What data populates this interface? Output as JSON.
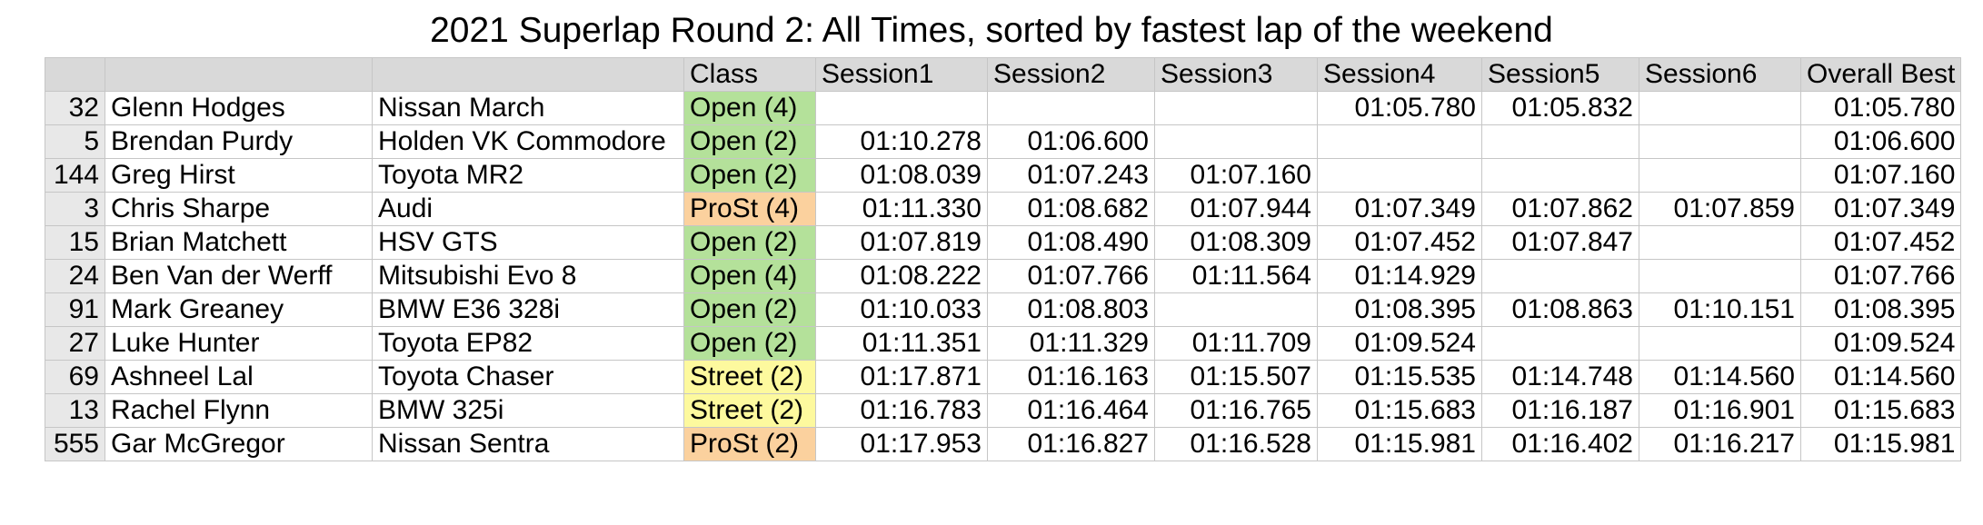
{
  "title": "2021 Superlap Round 2: All Times, sorted by fastest lap of the weekend",
  "table": {
    "header": [
      "Class",
      "Session1",
      "Session2",
      "Session3",
      "Session4",
      "Session5",
      "Session6",
      "Overall Best"
    ],
    "rows": [
      {
        "number": "32",
        "driver": "Glenn Hodges",
        "car": "Nissan March",
        "class": "Open (4)",
        "class_color": "#b4e19a",
        "sessions": [
          null,
          null,
          null,
          "01:05.780",
          "01:05.832",
          null
        ],
        "best": "01:05.780"
      },
      {
        "number": "5",
        "driver": "Brendan Purdy",
        "car": "Holden VK Commodore",
        "class": "Open (2)",
        "class_color": "#b4e19a",
        "sessions": [
          "01:10.278",
          "01:06.600",
          null,
          null,
          null,
          null
        ],
        "best": "01:06.600"
      },
      {
        "number": "144",
        "driver": "Greg Hirst",
        "car": "Toyota MR2",
        "class": "Open (2)",
        "class_color": "#b4e19a",
        "sessions": [
          "01:08.039",
          "01:07.243",
          "01:07.160",
          null,
          null,
          null
        ],
        "best": "01:07.160"
      },
      {
        "number": "3",
        "driver": "Chris Sharpe",
        "car": "Audi",
        "class": "ProSt (4)",
        "class_color": "#fbd19e",
        "sessions": [
          "01:11.330",
          "01:08.682",
          "01:07.944",
          "01:07.349",
          "01:07.862",
          "01:07.859"
        ],
        "best": "01:07.349"
      },
      {
        "number": "15",
        "driver": "Brian Matchett",
        "car": "HSV GTS",
        "class": "Open (2)",
        "class_color": "#b4e19a",
        "sessions": [
          "01:07.819",
          "01:08.490",
          "01:08.309",
          "01:07.452",
          "01:07.847",
          null
        ],
        "best": "01:07.452"
      },
      {
        "number": "24",
        "driver": "Ben Van der Werff",
        "car": "Mitsubishi Evo 8",
        "class": "Open (4)",
        "class_color": "#b4e19a",
        "sessions": [
          "01:08.222",
          "01:07.766",
          "01:11.564",
          "01:14.929",
          null,
          null
        ],
        "best": "01:07.766"
      },
      {
        "number": "91",
        "driver": "Mark Greaney",
        "car": "BMW E36 328i",
        "class": "Open (2)",
        "class_color": "#b4e19a",
        "sessions": [
          "01:10.033",
          "01:08.803",
          null,
          "01:08.395",
          "01:08.863",
          "01:10.151"
        ],
        "best": "01:08.395"
      },
      {
        "number": "27",
        "driver": "Luke Hunter",
        "car": "Toyota EP82",
        "class": "Open (2)",
        "class_color": "#b4e19a",
        "sessions": [
          "01:11.351",
          "01:11.329",
          "01:11.709",
          "01:09.524",
          null,
          null
        ],
        "best": "01:09.524"
      },
      {
        "number": "69",
        "driver": "Ashneel Lal",
        "car": "Toyota Chaser",
        "class": "Street (2)",
        "class_color": "#fdf99e",
        "sessions": [
          "01:17.871",
          "01:16.163",
          "01:15.507",
          "01:15.535",
          "01:14.748",
          "01:14.560"
        ],
        "best": "01:14.560"
      },
      {
        "number": "13",
        "driver": "Rachel Flynn",
        "car": "BMW 325i",
        "class": "Street (2)",
        "class_color": "#fdf99e",
        "sessions": [
          "01:16.783",
          "01:16.464",
          "01:16.765",
          "01:15.683",
          "01:16.187",
          "01:16.901"
        ],
        "best": "01:15.683"
      },
      {
        "number": "555",
        "driver": "Gar McGregor",
        "car": "Nissan Sentra",
        "class": "ProSt (2)",
        "class_color": "#fbd19e",
        "sessions": [
          "01:17.953",
          "01:16.827",
          "01:16.528",
          "01:15.981",
          "01:16.402",
          "01:16.217"
        ],
        "best": "01:15.981"
      }
    ]
  }
}
